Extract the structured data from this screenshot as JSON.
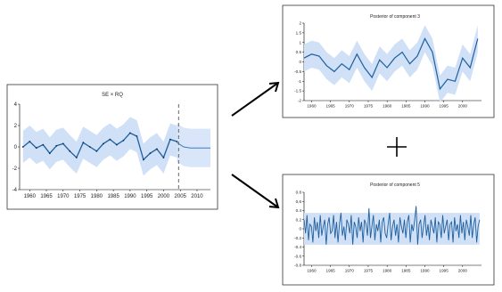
{
  "panels": {
    "main": {
      "title": "SE × RQ"
    },
    "top": {
      "title": "Posterior of component 3"
    },
    "bottom": {
      "title": "Posterior of component 5"
    }
  },
  "operator_symbol": "+",
  "colors": {
    "line": "#1f5f9e",
    "band": "#cfe0f7",
    "forecast_line": "#3a7bc8",
    "cutoff": "#666666"
  },
  "chart_data": [
    {
      "type": "line",
      "title": "SE × RQ",
      "x_ticks": [
        1960,
        1965,
        1970,
        1975,
        1980,
        1985,
        1990,
        1995,
        2000,
        2005,
        2010
      ],
      "y_ticks": [
        -4,
        -2,
        0,
        2,
        4
      ],
      "xlim": [
        1957,
        2014
      ],
      "ylim": [
        -4,
        4
      ],
      "forecast_start": 2004.5,
      "x": [
        1958,
        1960,
        1962,
        1964,
        1966,
        1968,
        1970,
        1972,
        1974,
        1976,
        1978,
        1980,
        1982,
        1984,
        1986,
        1988,
        1990,
        1992,
        1994,
        1996,
        1998,
        2000,
        2002,
        2004
      ],
      "y": [
        0.0,
        0.5,
        -0.1,
        0.2,
        -0.6,
        0.1,
        0.3,
        -0.4,
        -1.0,
        0.4,
        0.0,
        -0.4,
        0.3,
        0.7,
        0.2,
        0.6,
        1.3,
        1.0,
        -1.2,
        -0.6,
        -0.2,
        -1.0,
        0.7,
        0.5
      ],
      "forecast_x": [
        2004,
        2006,
        2008,
        2010,
        2012,
        2014
      ],
      "forecast_y": [
        0.4,
        0.0,
        -0.1,
        -0.1,
        -0.1,
        -0.1
      ],
      "band_halfwidth": 1.5,
      "forecast_band_halfwidth": 1.8
    },
    {
      "type": "line",
      "title": "Posterior of component 3",
      "x_ticks": [
        1960,
        1965,
        1970,
        1975,
        1980,
        1985,
        1990,
        1995,
        2000
      ],
      "y_ticks": [
        -2,
        -1.5,
        -1,
        -0.5,
        0,
        0.5,
        1,
        1.5,
        2
      ],
      "xlim": [
        1958,
        2005
      ],
      "ylim": [
        -2,
        2
      ],
      "x": [
        1958,
        1960,
        1962,
        1964,
        1966,
        1968,
        1970,
        1972,
        1974,
        1976,
        1978,
        1980,
        1982,
        1984,
        1986,
        1988,
        1990,
        1992,
        1994,
        1996,
        1998,
        2000,
        2002,
        2004
      ],
      "y": [
        0.2,
        0.4,
        0.3,
        -0.2,
        -0.5,
        -0.1,
        -0.4,
        0.4,
        -0.3,
        -0.8,
        0.1,
        -0.3,
        0.2,
        0.5,
        -0.1,
        0.3,
        1.2,
        0.5,
        -1.4,
        -0.9,
        -1.0,
        0.2,
        -0.3,
        1.2
      ],
      "band_halfwidth": 0.7
    },
    {
      "type": "line",
      "title": "Posterior of component 5",
      "x_ticks": [
        1960,
        1965,
        1970,
        1975,
        1980,
        1985,
        1990,
        1995,
        2000
      ],
      "y_ticks": [
        -0.8,
        -0.6,
        -0.4,
        -0.2,
        0,
        0.2,
        0.4,
        0.6,
        0.8
      ],
      "xlim": [
        1958,
        2005
      ],
      "ylim": [
        -0.8,
        0.8
      ],
      "x_start": 1958,
      "x_end": 2004.5,
      "noise_values": [
        0.2,
        -0.1,
        0.3,
        -0.25,
        0.1,
        0.05,
        -0.3,
        0.25,
        -0.05,
        0.15,
        -0.2,
        0.3,
        -0.15,
        0.05,
        0.2,
        -0.35,
        0.1,
        0.25,
        -0.1,
        -0.05,
        0.3,
        -0.2,
        0.15,
        -0.3,
        0.1,
        0.35,
        -0.15,
        0.05,
        -0.25,
        0.2,
        0.1,
        -0.1,
        0.3,
        -0.35,
        0.15,
        0.05,
        -0.2,
        0.25,
        -0.05,
        0.15,
        -0.3,
        0.2,
        0.1,
        -0.15,
        0.45,
        -0.2,
        0.05,
        0.3,
        -0.25,
        0.1,
        -0.05,
        0.2,
        -0.3,
        0.15,
        0.25,
        -0.1,
        -0.2,
        0.1,
        0.35,
        -0.25,
        0.05,
        0.2,
        -0.15,
        0.1,
        -0.3,
        0.25,
        0.05,
        -0.1,
        0.2,
        -0.2,
        0.15,
        0.3,
        -0.3,
        0.1,
        -0.05,
        0.2,
        0.5,
        -0.35,
        0.1,
        0.2,
        -0.2,
        0.05,
        0.3,
        -0.15,
        0.1,
        -0.25,
        0.2,
        0.05,
        -0.1,
        0.25,
        -0.3,
        0.15,
        0.1,
        -0.2,
        0.3,
        -0.1,
        0.05,
        0.2,
        -0.25,
        0.1,
        0.15,
        -0.3,
        0.25,
        -0.05,
        0.1,
        -0.2,
        0.3,
        -0.1,
        0.15,
        -0.25,
        0.2,
        0.05,
        -0.15,
        0.3,
        -0.2,
        0.1,
        0.25,
        -0.3,
        0.05,
        0.2
      ],
      "band_halfwidth": 0.35
    }
  ]
}
